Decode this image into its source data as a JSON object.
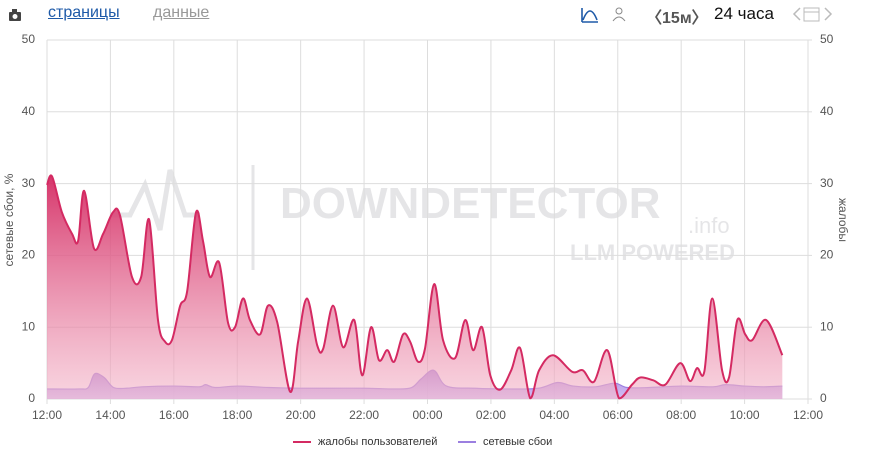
{
  "toolbar": {
    "tabs": [
      "страницы",
      "данные"
    ],
    "interval": "15м",
    "range": "24 часа"
  },
  "watermark": {
    "brand": "DOWNDETECTOR",
    "suffix": ".info",
    "tagline": "LLM POWERED"
  },
  "chart_data": {
    "type": "area",
    "y_label": "сетевые сбои, %",
    "y2_label": "жалобы",
    "xlim": [
      0,
      24
    ],
    "xticks": [
      {
        "value": 0,
        "label": "12:00"
      },
      {
        "value": 2,
        "label": "14:00"
      },
      {
        "value": 4,
        "label": "16:00"
      },
      {
        "value": 6,
        "label": "18:00"
      },
      {
        "value": 8,
        "label": "20:00"
      },
      {
        "value": 10,
        "label": "22:00"
      },
      {
        "value": 12,
        "label": "00:00"
      },
      {
        "value": 14,
        "label": "02:00"
      },
      {
        "value": 16,
        "label": "04:00"
      },
      {
        "value": 18,
        "label": "06:00"
      },
      {
        "value": 20,
        "label": "08:00"
      },
      {
        "value": 22,
        "label": "10:00"
      },
      {
        "value": 24,
        "label": "12:00"
      }
    ],
    "ylim": [
      0,
      50
    ],
    "yticks": [
      0,
      10,
      20,
      30,
      40,
      50
    ],
    "y2lim": [
      0,
      50
    ],
    "y2ticks": [
      0,
      10,
      20,
      30,
      40,
      50
    ],
    "grid": true,
    "legend": "bottom",
    "series": [
      {
        "name": "жалобы пользователей",
        "color": "#d42a62",
        "axis": "y2",
        "x": [
          0,
          0.16,
          0.47,
          0.79,
          0.98,
          1.17,
          1.48,
          1.77,
          2.08,
          2.3,
          2.68,
          2.97,
          3.22,
          3.5,
          3.72,
          3.94,
          4.2,
          4.42,
          4.7,
          4.92,
          5.14,
          5.43,
          5.71,
          5.93,
          6.18,
          6.4,
          6.72,
          6.97,
          7.26,
          7.67,
          7.92,
          8.2,
          8.52,
          8.71,
          9.02,
          9.34,
          9.69,
          9.94,
          10.22,
          10.47,
          10.73,
          10.95,
          11.23,
          11.45,
          11.7,
          11.92,
          12.21,
          12.49,
          12.87,
          13.19,
          13.44,
          13.72,
          13.98,
          14.29,
          14.64,
          14.92,
          15.24,
          15.52,
          15.96,
          16.56,
          16.9,
          17.25,
          17.67,
          18.04,
          18.45,
          18.71,
          19.12,
          19.5,
          19.97,
          20.28,
          20.5,
          20.73,
          20.98,
          21.29,
          21.51,
          21.77,
          22.02,
          22.24,
          22.68,
          23.19
        ],
        "values": [
          29.8,
          31,
          26,
          23,
          22,
          29,
          21,
          23,
          26,
          25.6,
          17,
          17,
          25,
          11,
          8,
          8.2,
          13,
          15,
          26,
          22,
          17,
          19,
          10.6,
          10,
          14,
          11,
          9,
          13,
          10.7,
          1,
          8,
          14,
          7.5,
          7,
          13,
          7.2,
          11,
          3.3,
          10,
          5.4,
          6.8,
          5.2,
          9,
          8,
          5.2,
          7,
          16,
          8.2,
          5.7,
          11,
          6.8,
          10,
          3.3,
          1.3,
          4,
          7.1,
          0.1,
          4,
          6.1,
          3.8,
          4,
          2.4,
          6.8,
          0.1,
          2,
          3,
          2.6,
          2,
          5,
          2.5,
          4.3,
          3.8,
          14,
          4,
          3,
          11,
          9,
          8.2,
          11,
          6.1
        ]
      },
      {
        "name": "сетевые сбои",
        "color": "#9b7fe0",
        "axis": "y",
        "x": [
          0,
          1,
          1.3,
          1.5,
          1.8,
          2.1,
          2.5,
          3,
          4,
          4.8,
          5,
          5.3,
          6,
          7,
          8,
          9,
          10,
          11,
          11.5,
          11.8,
          12.2,
          12.6,
          13.5,
          14.5,
          15.5,
          16.1,
          16.6,
          17.3,
          17.9,
          18.3,
          19,
          20,
          21,
          21.4,
          22,
          22.6,
          23.19
        ],
        "values": [
          1.4,
          1.4,
          1.6,
          3.5,
          3,
          1.6,
          1.5,
          1.7,
          1.8,
          1.7,
          2,
          1.6,
          1.8,
          1.6,
          1.5,
          1.5,
          1.5,
          1.4,
          1.6,
          2.8,
          4,
          1.8,
          1.5,
          1.4,
          1.5,
          2.3,
          1.8,
          1.7,
          2.2,
          1.6,
          1.6,
          1.8,
          1.7,
          2,
          1.8,
          1.7,
          1.8
        ]
      }
    ]
  }
}
